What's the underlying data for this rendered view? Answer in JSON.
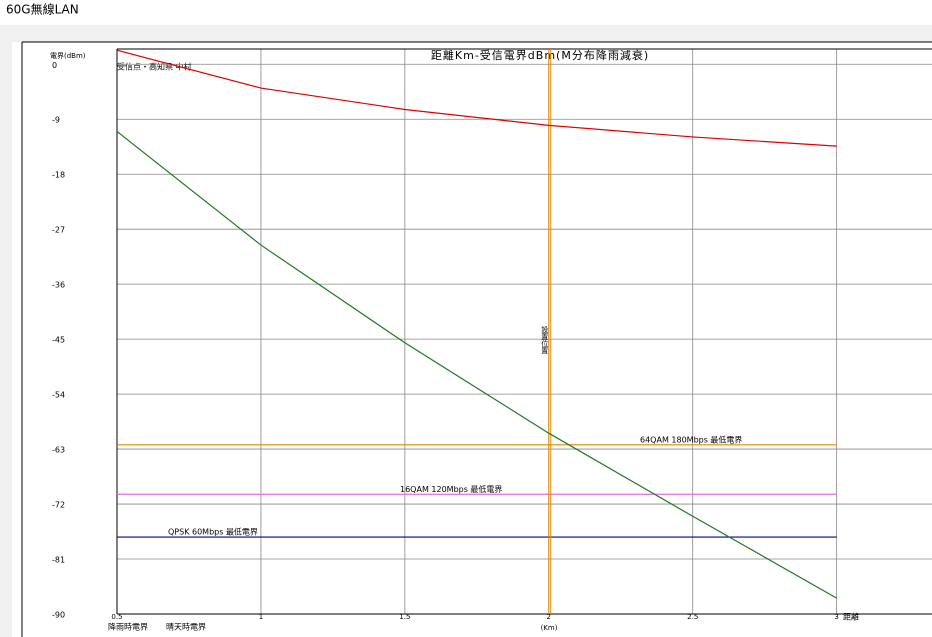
{
  "window_title": "60G無線LAN",
  "chart_data": {
    "type": "line",
    "title": "距離Km-受信電界dBm(M分布降雨減衰)",
    "subtitle": "受信点・高知県 中村",
    "y_label": "電界(dBm)",
    "x_label": "距離",
    "x_unit": "(Km)",
    "x": [
      0.5,
      1,
      1.5,
      2,
      2.5,
      3
    ],
    "series": [
      {
        "name": "降雨時電界",
        "color": "#1e7a1e",
        "values": [
          -11.0,
          -29.6,
          -45.6,
          -60.4,
          -74.0,
          -87.4
        ]
      },
      {
        "name": "晴天時電界",
        "color": "#e00000",
        "values": [
          2.3,
          -3.9,
          -7.4,
          -10.0,
          -11.9,
          -13.4
        ]
      }
    ],
    "thresholds": [
      {
        "name": "64QAM 180Mbps 最低電界",
        "value": -62.3,
        "color": "#e08a00"
      },
      {
        "name": "16QAM 120Mbps 最低電界",
        "value": -70.4,
        "color": "#e070e0"
      },
      {
        "name": "QPSK 60Mbps 最低電界",
        "value": -77.4,
        "color": "#0000a0"
      }
    ],
    "marker": {
      "name": "設置位置",
      "x": 2,
      "color": "#e08a00"
    },
    "xlim": [
      0.5,
      3.3
    ],
    "ylim": [
      -90,
      2.5
    ],
    "xticks": [
      0.5,
      1,
      1.5,
      2,
      2.5,
      3
    ],
    "yticks": [
      -90,
      -81,
      -72,
      -63,
      -54,
      -45,
      -36,
      -27,
      -18,
      -9,
      0
    ],
    "grid": true
  }
}
